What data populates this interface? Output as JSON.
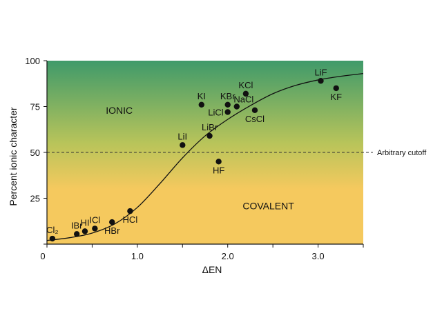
{
  "chart_data": {
    "type": "scatter",
    "title": "",
    "xlabel": "ΔEN",
    "ylabel": "Percent ionic character",
    "xlim": [
      0,
      3.5
    ],
    "ylim": [
      0,
      100
    ],
    "x_ticks": [
      0,
      0.5,
      1.0,
      1.5,
      2.0,
      2.5,
      3.0,
      3.5
    ],
    "x_tick_labels": [
      {
        "value": 0,
        "label": "0"
      },
      {
        "value": 1.0,
        "label": "1.0"
      },
      {
        "value": 2.0,
        "label": "2.0"
      },
      {
        "value": 3.0,
        "label": "3.0"
      }
    ],
    "y_ticks": [
      {
        "value": 0,
        "label": "0"
      },
      {
        "value": 25,
        "label": "25"
      },
      {
        "value": 50,
        "label": "50"
      },
      {
        "value": 75,
        "label": "75"
      },
      {
        "value": 100,
        "label": "100"
      }
    ],
    "grid": false,
    "background_gradient": {
      "top": "#3f9a6a",
      "middle": "#b8c45a",
      "bottom": "#f5c95e"
    },
    "points": [
      {
        "label": "Cl₂",
        "x": 0.06,
        "y": 3,
        "label_pos": "above"
      },
      {
        "label": "IBr",
        "x": 0.33,
        "y": 5.5,
        "label_pos": "above"
      },
      {
        "label": "HI",
        "x": 0.42,
        "y": 7,
        "label_pos": "above"
      },
      {
        "label": "ICl",
        "x": 0.53,
        "y": 8.5,
        "label_pos": "above"
      },
      {
        "label": "HBr",
        "x": 0.72,
        "y": 12,
        "label_pos": "below"
      },
      {
        "label": "HCl",
        "x": 0.92,
        "y": 18,
        "label_pos": "below"
      },
      {
        "label": "LiI",
        "x": 1.5,
        "y": 54,
        "label_pos": "above"
      },
      {
        "label": "LiBr",
        "x": 1.8,
        "y": 59,
        "label_pos": "above"
      },
      {
        "label": "HF",
        "x": 1.9,
        "y": 45,
        "label_pos": "below"
      },
      {
        "label": "KI",
        "x": 1.71,
        "y": 76,
        "label_pos": "above"
      },
      {
        "label": "KBr",
        "x": 2.0,
        "y": 76,
        "label_pos": "above"
      },
      {
        "label": "LiCl",
        "x": 2.0,
        "y": 72,
        "label_pos": "left"
      },
      {
        "label": "NaCl",
        "x": 2.1,
        "y": 75,
        "label_pos": "above-right"
      },
      {
        "label": "KCl",
        "x": 2.2,
        "y": 82,
        "label_pos": "above"
      },
      {
        "label": "CsCl",
        "x": 2.3,
        "y": 73,
        "label_pos": "below"
      },
      {
        "label": "LiF",
        "x": 3.03,
        "y": 89,
        "label_pos": "above"
      },
      {
        "label": "KF",
        "x": 3.2,
        "y": 85,
        "label_pos": "below"
      }
    ],
    "curve": [
      [
        0,
        2
      ],
      [
        0.25,
        3.5
      ],
      [
        0.5,
        6
      ],
      [
        0.75,
        11
      ],
      [
        1.0,
        20
      ],
      [
        1.25,
        33
      ],
      [
        1.5,
        47
      ],
      [
        1.75,
        59
      ],
      [
        2.0,
        68
      ],
      [
        2.25,
        75.5
      ],
      [
        2.5,
        82
      ],
      [
        2.75,
        86.5
      ],
      [
        3.0,
        89.5
      ],
      [
        3.25,
        91.5
      ],
      [
        3.5,
        93
      ]
    ],
    "cutoff": {
      "y": 50,
      "label": "Arbitrary cutoff"
    },
    "regions": [
      {
        "label": "IONIC",
        "x": 0.8,
        "y": 71
      },
      {
        "label": "COVALENT",
        "x": 2.45,
        "y": 19
      }
    ]
  }
}
